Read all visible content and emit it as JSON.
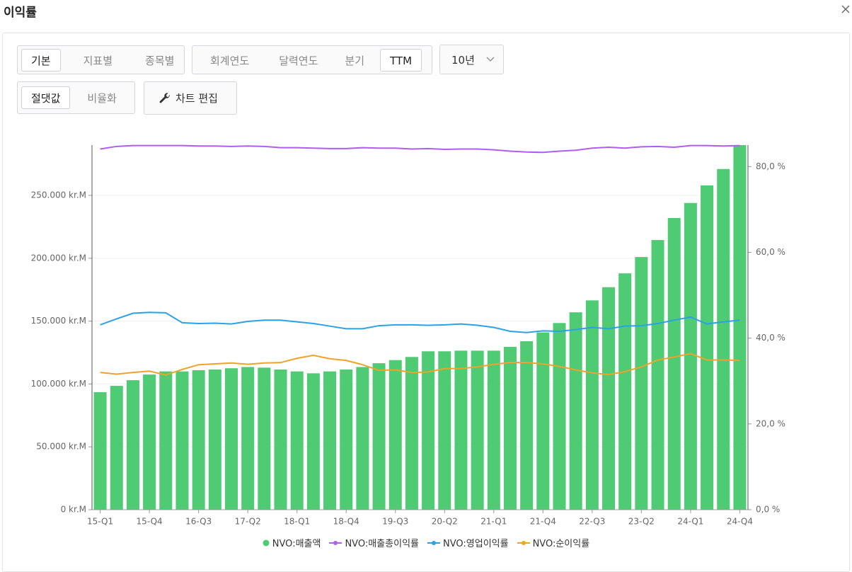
{
  "header": {
    "title": "이익률"
  },
  "controls": {
    "view": [
      {
        "label": "기본",
        "selected": true
      },
      {
        "label": "지표별",
        "selected": false
      },
      {
        "label": "종목별",
        "selected": false
      }
    ],
    "period": [
      {
        "label": "회계연도",
        "selected": false
      },
      {
        "label": "달력연도",
        "selected": false
      },
      {
        "label": "분기",
        "selected": false
      },
      {
        "label": "TTM",
        "selected": true
      }
    ],
    "range": "10년",
    "scale": [
      {
        "label": "절댓값",
        "selected": true
      },
      {
        "label": "비율화",
        "selected": false
      }
    ],
    "edit": "차트 편집"
  },
  "chart_data": {
    "type": "combo",
    "categories": [
      "15-Q1",
      null,
      null,
      "15-Q4",
      null,
      null,
      "16-Q3",
      null,
      null,
      "17-Q2",
      null,
      null,
      "18-Q1",
      null,
      null,
      "18-Q4",
      null,
      null,
      "19-Q3",
      null,
      null,
      "20-Q2",
      null,
      null,
      "21-Q1",
      null,
      null,
      "21-Q4",
      null,
      null,
      "22-Q3",
      null,
      null,
      "23-Q2",
      null,
      null,
      "24-Q1",
      null,
      null,
      "24-Q4"
    ],
    "series": [
      {
        "name": "NVO:매출액",
        "type": "bar",
        "axis": "y",
        "color": "#4ecb73",
        "values": [
          93500,
          98500,
          103000,
          107500,
          110000,
          110000,
          111000,
          111500,
          112500,
          113500,
          113000,
          111500,
          110000,
          108500,
          110000,
          111500,
          113500,
          116500,
          119000,
          121500,
          126000,
          126000,
          126500,
          126500,
          126500,
          129500,
          134000,
          141000,
          148500,
          157000,
          166500,
          177000,
          188000,
          201000,
          214500,
          232000,
          244000,
          258000,
          271000,
          290000
        ]
      },
      {
        "name": "NVO:매출총이익률",
        "type": "line",
        "axis": "y2",
        "color": "#b05ef0",
        "values": [
          84.1,
          84.7,
          84.9,
          84.9,
          84.9,
          84.9,
          84.8,
          84.8,
          84.7,
          84.8,
          84.7,
          84.4,
          84.4,
          84.3,
          84.2,
          84.2,
          84.4,
          84.3,
          84.3,
          84.1,
          84.2,
          84.0,
          84.1,
          84.1,
          83.9,
          83.6,
          83.4,
          83.3,
          83.6,
          83.8,
          84.3,
          84.5,
          84.3,
          84.6,
          84.7,
          84.5,
          84.9,
          84.9,
          84.8,
          84.9
        ]
      },
      {
        "name": "NVO:영업이익률",
        "type": "line",
        "axis": "y2",
        "color": "#2ba2e8",
        "values": [
          43.1,
          44.5,
          45.8,
          46.0,
          45.9,
          43.6,
          43.4,
          43.5,
          43.3,
          43.9,
          44.2,
          44.2,
          43.8,
          43.4,
          42.8,
          42.2,
          42.2,
          42.9,
          43.1,
          43.1,
          43.0,
          43.1,
          43.3,
          43.0,
          42.5,
          41.6,
          41.3,
          41.7,
          41.6,
          42.0,
          42.5,
          42.2,
          42.8,
          42.9,
          43.4,
          44.2,
          44.9,
          43.3,
          43.8,
          44.2
        ]
      },
      {
        "name": "NVO:순이익률",
        "type": "line",
        "axis": "y2",
        "color": "#f0a22a",
        "values": [
          32.0,
          31.6,
          32.0,
          32.3,
          31.4,
          32.7,
          33.8,
          34.0,
          34.2,
          33.9,
          34.2,
          34.3,
          35.3,
          36.0,
          35.2,
          34.8,
          33.8,
          32.5,
          32.6,
          32.0,
          32.1,
          32.9,
          32.9,
          33.3,
          33.9,
          34.3,
          34.3,
          34.0,
          33.4,
          32.6,
          31.9,
          31.5,
          32.2,
          33.3,
          34.9,
          35.6,
          36.4,
          34.9,
          34.9,
          34.8
        ]
      }
    ],
    "ylim": [
      0,
      290000
    ],
    "yticks": [
      {
        "value": 0,
        "label": "0 kr.M"
      },
      {
        "value": 50000,
        "label": "50.000 kr.M"
      },
      {
        "value": 100000,
        "label": "100.000 kr.M"
      },
      {
        "value": 150000,
        "label": "150.000 kr.M"
      },
      {
        "value": 200000,
        "label": "200.000 kr.M"
      },
      {
        "value": 250000,
        "label": "250.000 kr.M"
      }
    ],
    "y2lim": [
      0,
      85
    ],
    "y2ticks": [
      {
        "value": 0,
        "label": "0,0 %"
      },
      {
        "value": 20,
        "label": "20,0 %"
      },
      {
        "value": 40,
        "label": "40,0 %"
      },
      {
        "value": 60,
        "label": "60,0 %"
      },
      {
        "value": 80,
        "label": "80,0 %"
      }
    ],
    "grid": true,
    "legend": "bottom"
  }
}
